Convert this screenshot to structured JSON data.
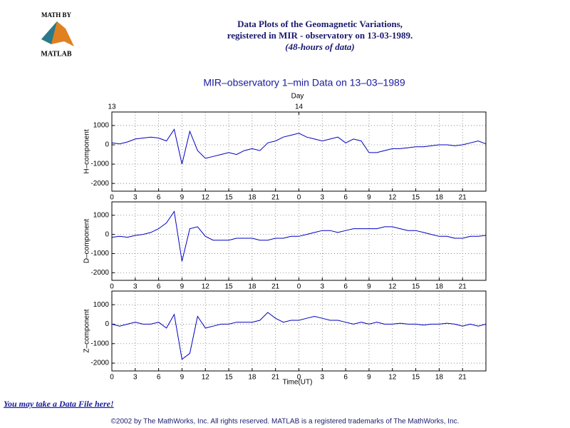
{
  "header": {
    "logo_top": "MATH BY",
    "logo_bottom": "MATLAB",
    "title_lines": [
      "Data Plots of the Geomagnetic Variations,",
      "registered in MIR - observatory on 13-03-1989.",
      "(48-hours of data)"
    ]
  },
  "link": "You may take a Data File here!",
  "footer": "©2002 by The MathWorks, Inc. All rights reserved. MATLAB is a registered trademarks of The MathWorks, Inc.",
  "chart_data": [
    {
      "type": "line",
      "title": "MIR–observatory 1–min Data on 13–03–1989",
      "x2label": "Day",
      "x2ticks": [
        {
          "value": 0,
          "label": "13"
        },
        {
          "value": 24,
          "label": "14"
        }
      ],
      "ylabel": "H–component",
      "grid": true,
      "color": "#0000c0",
      "x": [
        0,
        1,
        2,
        3,
        4,
        5,
        6,
        7,
        8,
        9,
        10,
        11,
        12,
        13,
        14,
        15,
        16,
        17,
        18,
        19,
        20,
        21,
        22,
        23,
        24,
        25,
        26,
        27,
        28,
        29,
        30,
        31,
        32,
        33,
        34,
        35,
        36,
        37,
        38,
        39,
        40,
        41,
        42,
        43,
        44,
        45,
        46,
        47,
        48
      ],
      "values": [
        100,
        50,
        150,
        300,
        350,
        400,
        350,
        200,
        800,
        -1000,
        700,
        -300,
        -700,
        -600,
        -500,
        -400,
        -500,
        -300,
        -200,
        -300,
        100,
        200,
        400,
        500,
        600,
        400,
        300,
        200,
        300,
        400,
        100,
        300,
        200,
        -400,
        -400,
        -300,
        -200,
        -200,
        -150,
        -100,
        -100,
        -50,
        0,
        0,
        -50,
        0,
        100,
        200,
        50
      ],
      "xlim": [
        0,
        48
      ],
      "xticks": [
        0,
        3,
        6,
        9,
        12,
        15,
        18,
        21,
        {
          "value": 24,
          "label": "0"
        },
        {
          "value": 27,
          "label": "3"
        },
        {
          "value": 30,
          "label": "6"
        },
        {
          "value": 33,
          "label": "9"
        },
        {
          "value": 36,
          "label": "12"
        },
        {
          "value": 39,
          "label": "15"
        },
        {
          "value": 42,
          "label": "18"
        },
        {
          "value": 45,
          "label": "21"
        }
      ],
      "ylim": [
        -2400,
        1700
      ],
      "yticks": [
        -2000,
        -1000,
        0,
        1000
      ]
    },
    {
      "type": "line",
      "ylabel": "D–component",
      "grid": true,
      "color": "#0000c0",
      "x": [
        0,
        1,
        2,
        3,
        4,
        5,
        6,
        7,
        8,
        9,
        10,
        11,
        12,
        13,
        14,
        15,
        16,
        17,
        18,
        19,
        20,
        21,
        22,
        23,
        24,
        25,
        26,
        27,
        28,
        29,
        30,
        31,
        32,
        33,
        34,
        35,
        36,
        37,
        38,
        39,
        40,
        41,
        42,
        43,
        44,
        45,
        46,
        47,
        48
      ],
      "values": [
        -150,
        -100,
        -150,
        -50,
        0,
        100,
        300,
        600,
        1200,
        -1400,
        300,
        400,
        -100,
        -300,
        -300,
        -300,
        -200,
        -200,
        -200,
        -300,
        -300,
        -200,
        -200,
        -100,
        -100,
        0,
        100,
        200,
        200,
        100,
        200,
        300,
        300,
        300,
        300,
        400,
        400,
        300,
        200,
        200,
        100,
        0,
        -100,
        -100,
        -200,
        -200,
        -100,
        -100,
        -50
      ],
      "xlim": [
        0,
        48
      ],
      "xticks": [
        0,
        3,
        6,
        9,
        12,
        15,
        18,
        21,
        {
          "value": 24,
          "label": "0"
        },
        {
          "value": 27,
          "label": "3"
        },
        {
          "value": 30,
          "label": "6"
        },
        {
          "value": 33,
          "label": "9"
        },
        {
          "value": 36,
          "label": "12"
        },
        {
          "value": 39,
          "label": "15"
        },
        {
          "value": 42,
          "label": "18"
        },
        {
          "value": 45,
          "label": "21"
        }
      ],
      "ylim": [
        -2400,
        1700
      ],
      "yticks": [
        -2000,
        -1000,
        0,
        1000
      ]
    },
    {
      "type": "line",
      "ylabel": "Z–component",
      "xlabel": "Time(UT)",
      "grid": true,
      "color": "#0000c0",
      "x": [
        0,
        1,
        2,
        3,
        4,
        5,
        6,
        7,
        8,
        9,
        10,
        11,
        12,
        13,
        14,
        15,
        16,
        17,
        18,
        19,
        20,
        21,
        22,
        23,
        24,
        25,
        26,
        27,
        28,
        29,
        30,
        31,
        32,
        33,
        34,
        35,
        36,
        37,
        38,
        39,
        40,
        41,
        42,
        43,
        44,
        45,
        46,
        47,
        48
      ],
      "values": [
        0,
        -100,
        0,
        100,
        0,
        0,
        100,
        -200,
        500,
        -1800,
        -1500,
        400,
        -200,
        -100,
        0,
        0,
        100,
        100,
        100,
        200,
        600,
        300,
        100,
        200,
        200,
        300,
        400,
        300,
        200,
        200,
        100,
        0,
        100,
        0,
        100,
        0,
        0,
        50,
        0,
        0,
        -50,
        0,
        0,
        50,
        0,
        -100,
        0,
        -100,
        0
      ],
      "xlim": [
        0,
        48
      ],
      "xticks": [
        0,
        3,
        6,
        9,
        12,
        15,
        18,
        21,
        {
          "value": 24,
          "label": "0"
        },
        {
          "value": 27,
          "label": "3"
        },
        {
          "value": 30,
          "label": "6"
        },
        {
          "value": 33,
          "label": "9"
        },
        {
          "value": 36,
          "label": "12"
        },
        {
          "value": 39,
          "label": "15"
        },
        {
          "value": 42,
          "label": "18"
        },
        {
          "value": 45,
          "label": "21"
        }
      ],
      "ylim": [
        -2400,
        1700
      ],
      "yticks": [
        -2000,
        -1000,
        0,
        1000
      ]
    }
  ]
}
